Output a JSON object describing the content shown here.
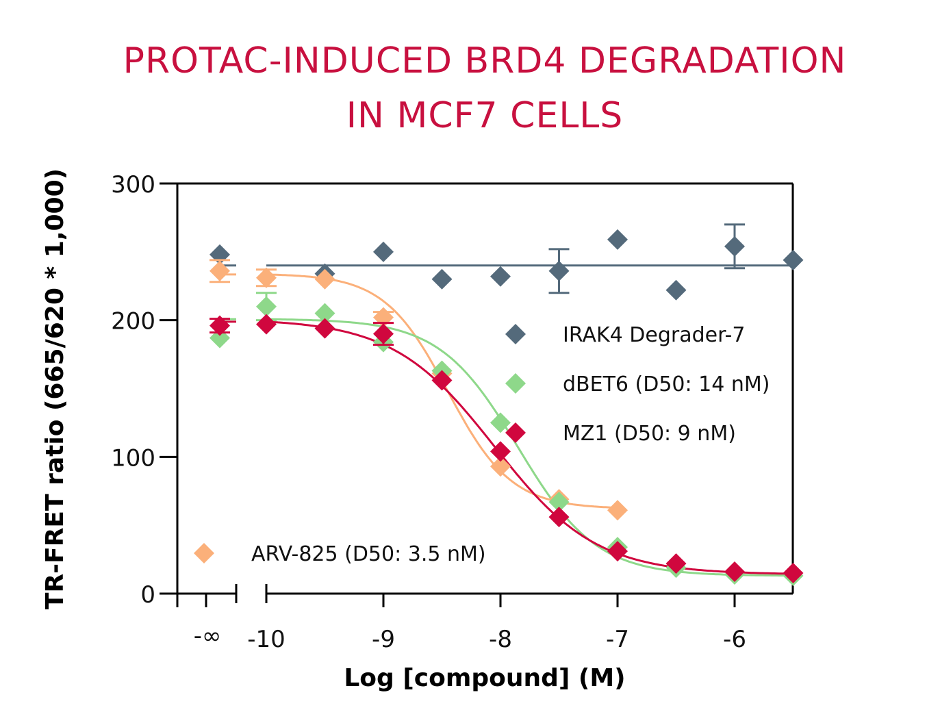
{
  "chart_data": {
    "type": "scatter",
    "title": [
      "PROTAC-INDUCED BRD4 DEGRADATION",
      "IN MCF7 CELLS"
    ],
    "xlabel": "Log [compound] (M)",
    "ylabel": "TR-FRET ratio (665/620 * 1,000)",
    "xlim": [
      -10,
      -5.5
    ],
    "ylim": [
      0,
      300
    ],
    "x_ticks": [
      -10,
      -9,
      -8,
      -7,
      -6
    ],
    "x_tick_labels": [
      "-10",
      "-9",
      "-8",
      "-7",
      "-6"
    ],
    "x_break_label": "-∞",
    "y_ticks": [
      0,
      100,
      200,
      300
    ],
    "y_tick_labels": [
      "0",
      "100",
      "200",
      "300"
    ],
    "grid": false,
    "series": [
      {
        "name": "IRAK4 Degrader-7",
        "color": "#546a7b",
        "control_value": 248,
        "x": [
          -9.5,
          -9,
          -8.5,
          -8,
          -7.5,
          -7,
          -6.5,
          -6,
          -5.5
        ],
        "y": [
          234,
          250,
          230,
          232,
          236,
          259,
          222,
          254,
          244
        ],
        "error": [
          null,
          null,
          null,
          null,
          16,
          null,
          null,
          16,
          null
        ],
        "fit": {
          "type": "flat",
          "value": 240
        }
      },
      {
        "name": "dBET6 (D50: 14 nM)",
        "color": "#8ed88a",
        "control_value": 187,
        "x": [
          -10,
          -9.5,
          -9,
          -8.5,
          -8,
          -7.5,
          -7,
          -6.5,
          -6,
          -5.5
        ],
        "y": [
          210,
          205,
          184,
          163,
          125,
          67,
          34,
          19,
          14,
          13
        ],
        "error": [
          10,
          null,
          null,
          null,
          null,
          null,
          null,
          null,
          null,
          null
        ],
        "fit": {
          "type": "4pl",
          "top": 201,
          "bottom": 13,
          "logEC50": -7.85,
          "hill": 1.3
        }
      },
      {
        "name": "MZ1 (D50: 9 nM)",
        "color": "#d0073e",
        "control_value": 196,
        "control_error": 5,
        "x": [
          -10,
          -9.5,
          -9,
          -8.5,
          -8,
          -7.5,
          -7,
          -6.5,
          -6,
          -5.5
        ],
        "y": [
          197,
          194,
          190,
          156,
          104,
          56,
          31,
          22,
          16,
          15
        ],
        "error": [
          null,
          null,
          8,
          null,
          null,
          null,
          null,
          null,
          null,
          null
        ],
        "fit": {
          "type": "4pl",
          "top": 201,
          "bottom": 14,
          "logEC50": -8.05,
          "hill": 1.0
        }
      },
      {
        "name": "ARV-825 (D50: 3.5 nM)",
        "color": "#fbb07a",
        "control_value": 236,
        "control_error": 8,
        "x": [
          -10,
          -9.5,
          -9,
          -8.5,
          -8,
          -7.5,
          -7
        ],
        "y": [
          231,
          230,
          202,
          161,
          93,
          69,
          61
        ],
        "error": [
          6,
          null,
          4,
          null,
          null,
          null,
          null
        ],
        "fit": {
          "type": "4pl",
          "top": 234,
          "bottom": 62,
          "logEC50": -8.45,
          "hill": 1.6
        }
      }
    ],
    "legend": [
      "IRAK4 Degrader-7",
      "dBET6 (D50: 14 nM)",
      "MZ1 (D50: 9 nM)",
      "ARV-825 (D50: 3.5 nM)"
    ],
    "legend_placement": "inside-right"
  }
}
